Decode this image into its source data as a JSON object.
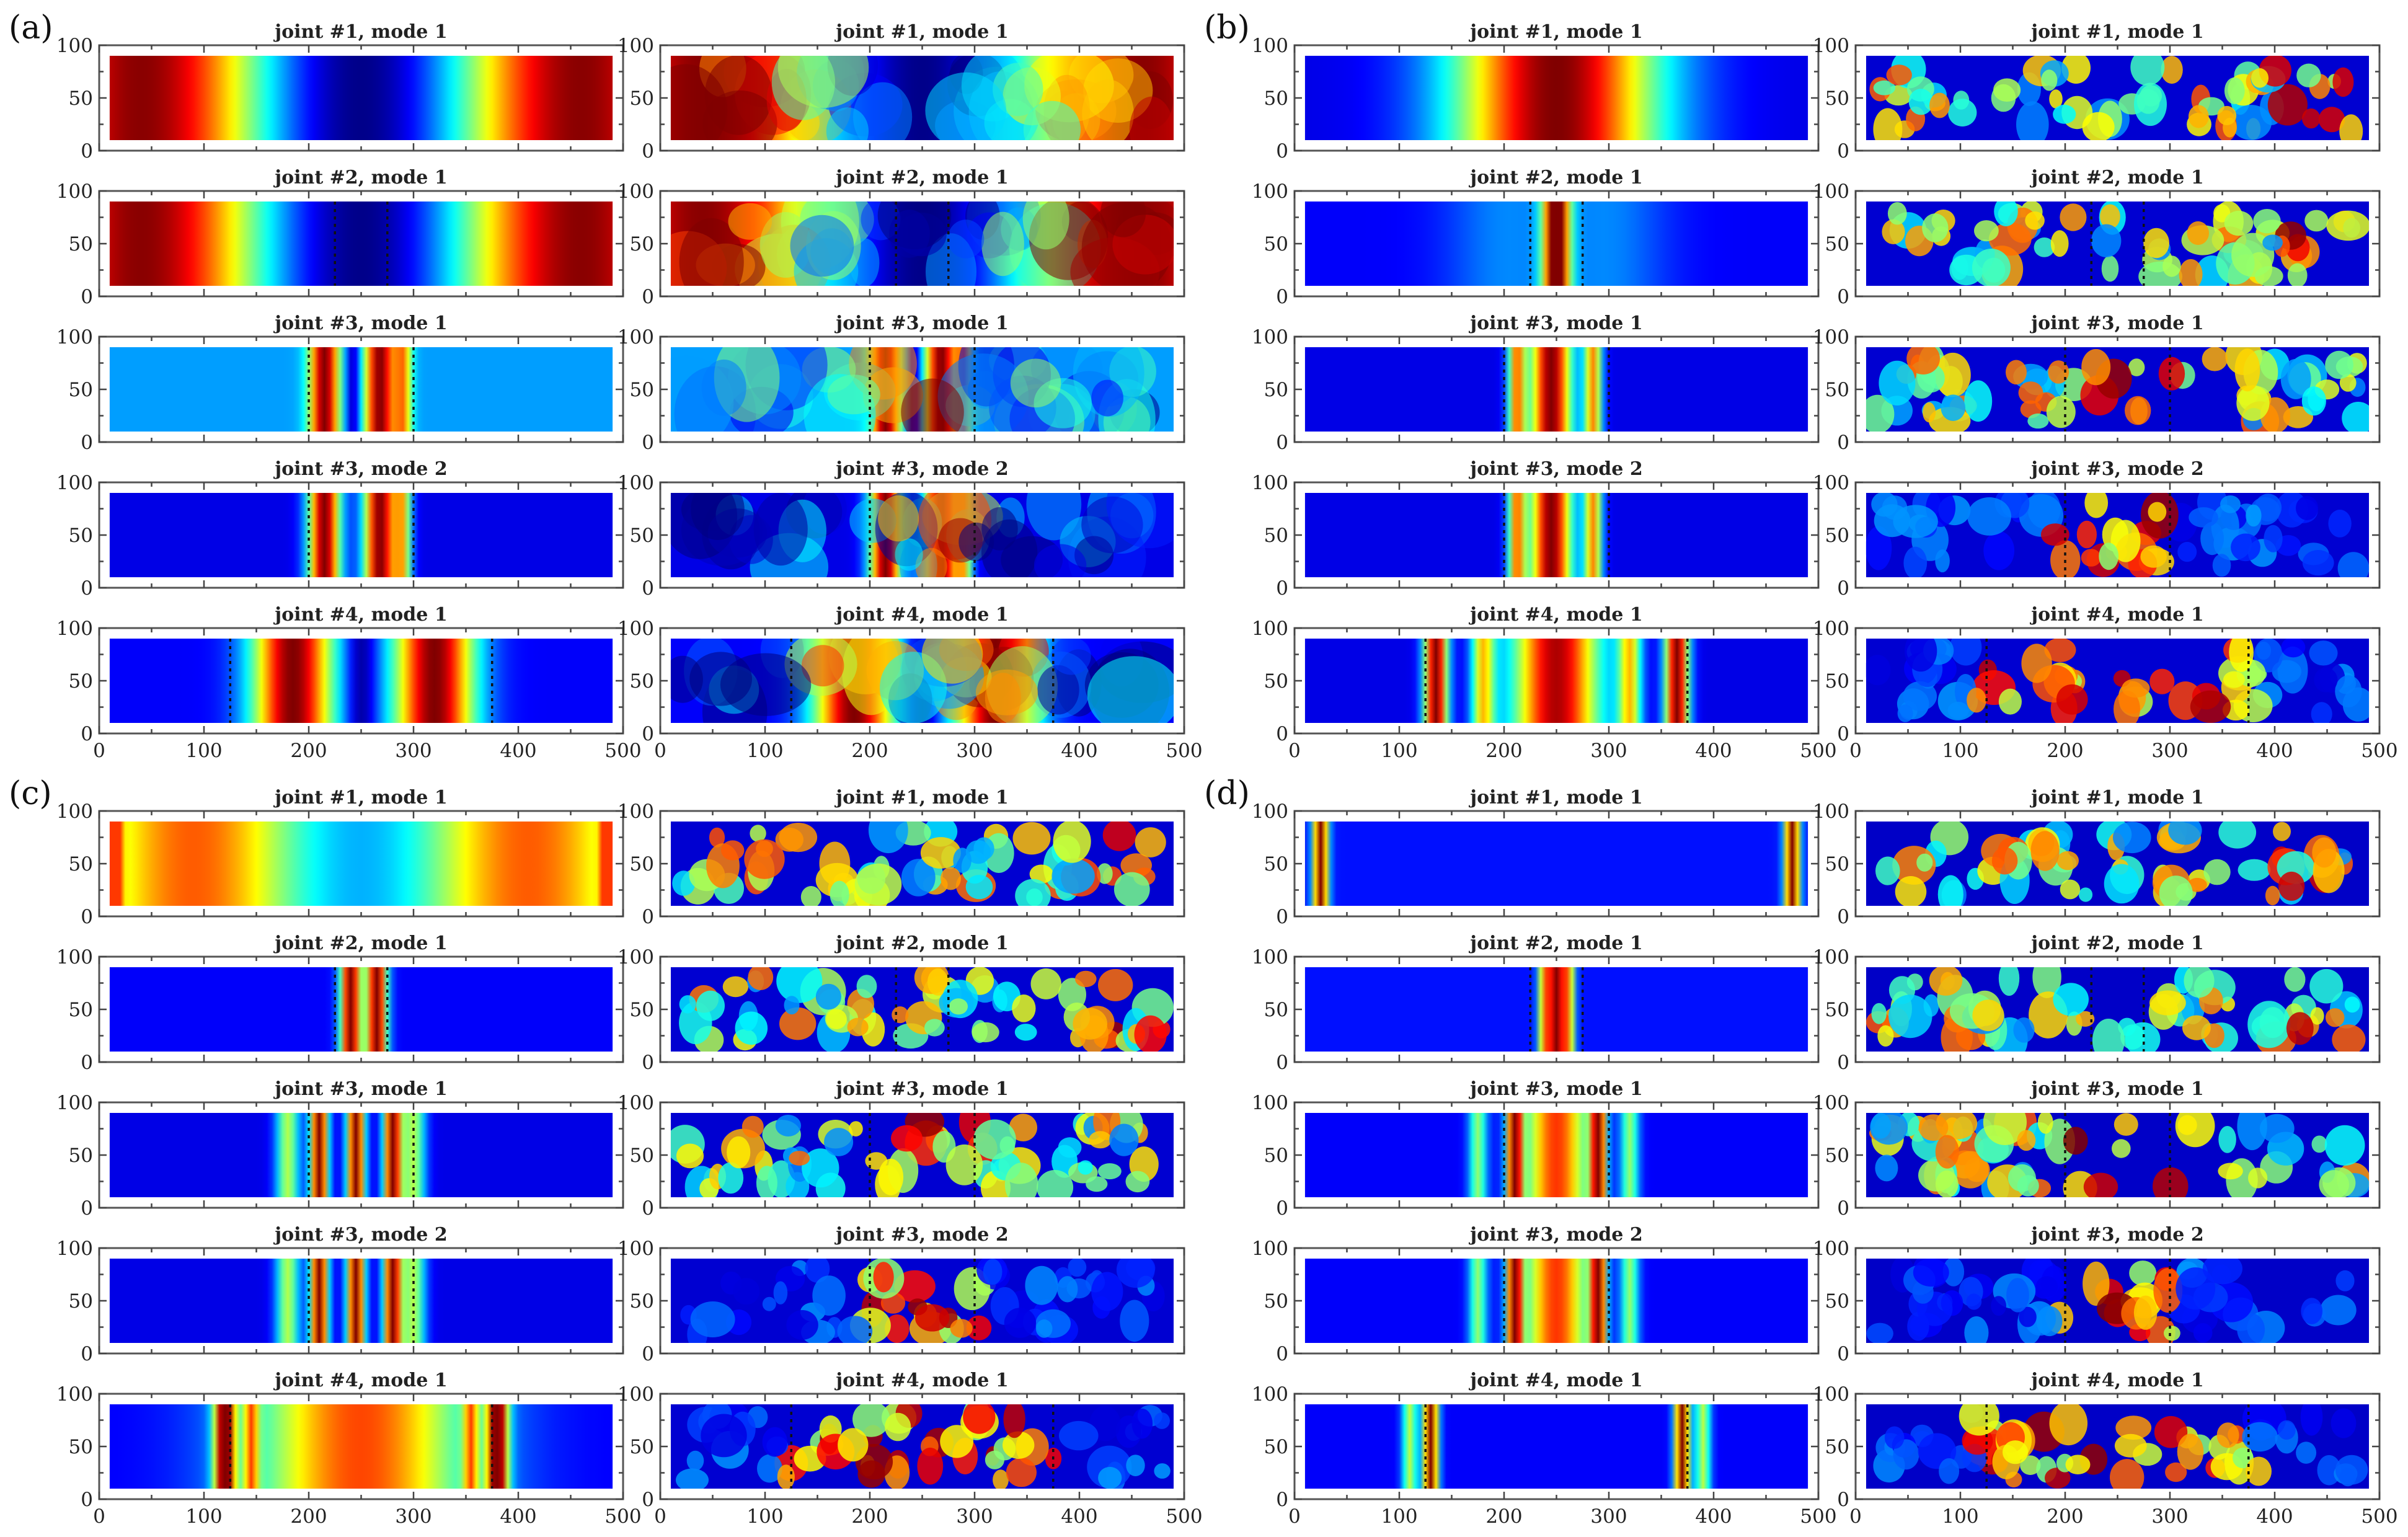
{
  "chart_data": {
    "type": "heatmap",
    "title": "",
    "colormap": "jet",
    "xlim": [
      0,
      500
    ],
    "ylim": [
      0,
      100
    ],
    "xticks": [
      "0",
      "100",
      "200",
      "300",
      "400",
      "500"
    ],
    "yticks": [
      "0",
      "50",
      "100"
    ],
    "grid": false,
    "field_extent_x": [
      10,
      490
    ],
    "field_extent_y": [
      10,
      90
    ],
    "joints": {
      "#1": [],
      "#2": [
        225,
        275
      ],
      "#3": [
        200,
        300
      ],
      "#4": [
        125,
        375
      ]
    },
    "groups": [
      {
        "label": "(a)",
        "columns": [
          "left",
          "right"
        ],
        "panels": [
          {
            "title": "joint #1, mode 1",
            "joint": "#1"
          },
          {
            "title": "joint #2, mode 1",
            "joint": "#2"
          },
          {
            "title": "joint #3, mode 1",
            "joint": "#3"
          },
          {
            "title": "joint #3, mode 2",
            "joint": "#3"
          },
          {
            "title": "joint #4, mode 1",
            "joint": "#4"
          }
        ]
      },
      {
        "label": "(b)",
        "columns": [
          "left",
          "right"
        ],
        "panels": [
          {
            "title": "joint #1, mode 1",
            "joint": "#1"
          },
          {
            "title": "joint #2, mode 1",
            "joint": "#2"
          },
          {
            "title": "joint #3, mode 1",
            "joint": "#3"
          },
          {
            "title": "joint #3, mode 2",
            "joint": "#3"
          },
          {
            "title": "joint #4, mode 1",
            "joint": "#4"
          }
        ]
      },
      {
        "label": "(c)",
        "columns": [
          "left",
          "right"
        ],
        "panels": [
          {
            "title": "joint #1, mode 1",
            "joint": "#1"
          },
          {
            "title": "joint #2, mode 1",
            "joint": "#2"
          },
          {
            "title": "joint #3, mode 1",
            "joint": "#3"
          },
          {
            "title": "joint #3, mode 2",
            "joint": "#3"
          },
          {
            "title": "joint #4, mode 1",
            "joint": "#4"
          }
        ]
      },
      {
        "label": "(d)",
        "columns": [
          "left",
          "right"
        ],
        "panels": [
          {
            "title": "joint #1, mode 1",
            "joint": "#1"
          },
          {
            "title": "joint #2, mode 1",
            "joint": "#2"
          },
          {
            "title": "joint #3, mode 1",
            "joint": "#3"
          },
          {
            "title": "joint #3, mode 2",
            "joint": "#3"
          },
          {
            "title": "joint #4, mode 1",
            "joint": "#4"
          }
        ]
      }
    ]
  }
}
